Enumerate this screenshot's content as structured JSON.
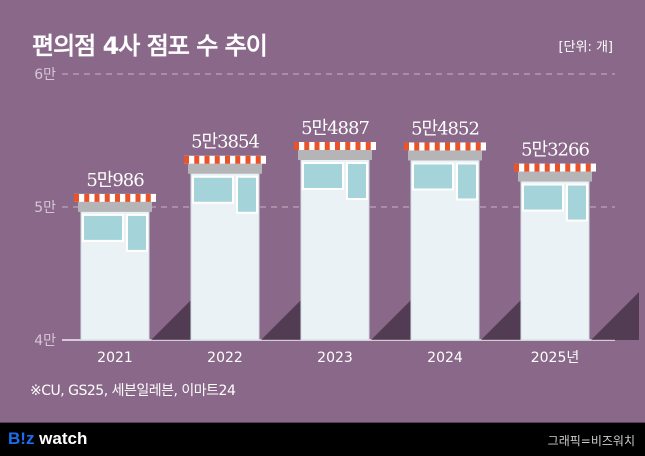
{
  "title": "편의점 4사 점포 수 추이",
  "unit": "[단위: 개]",
  "note": "※CU, GS25, 세븐일레븐, 이마트24",
  "footer": {
    "logo_b": "B!z",
    "logo_rest": " watch",
    "credit": "그래픽=비즈워치"
  },
  "colors": {
    "background": "#8a6889",
    "building": "#eaf2f5",
    "awning_red": "#e8532a",
    "window": "#a4d3d9"
  },
  "chart_data": {
    "type": "bar",
    "categories": [
      "2021",
      "2022",
      "2023",
      "2024",
      "2025년"
    ],
    "values": [
      50986,
      53854,
      54887,
      54852,
      53266
    ],
    "labels": [
      "5만986",
      "5만3854",
      "5만4887",
      "5만4852",
      "5만3266"
    ],
    "yticks": [
      {
        "v": 60000,
        "label": "6만"
      },
      {
        "v": 50000,
        "label": "5만"
      },
      {
        "v": 40000,
        "label": "4만"
      }
    ],
    "ylim": [
      40000,
      60000
    ],
    "grid": true
  }
}
